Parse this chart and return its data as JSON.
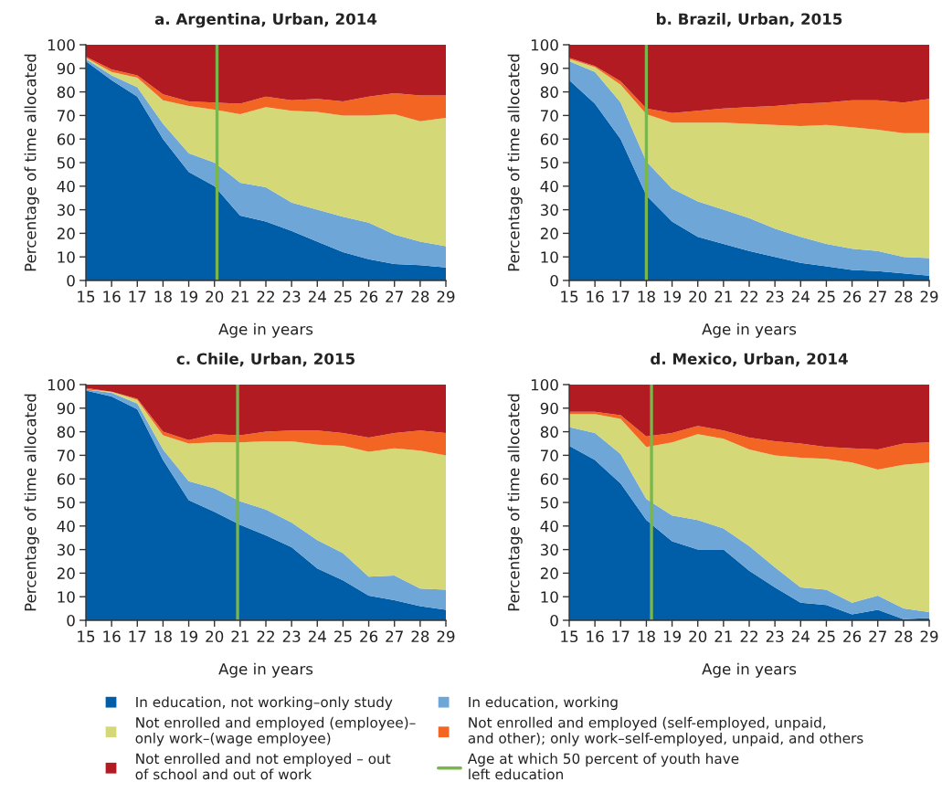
{
  "chart_data": [
    {
      "type": "area",
      "stacked": true,
      "title": "a. Argentina, Urban, 2014",
      "xlabel": "Age in years",
      "ylabel": "Percentage of time allocated",
      "x": [
        15,
        16,
        17,
        18,
        19,
        20,
        21,
        22,
        23,
        24,
        25,
        26,
        27,
        28,
        29
      ],
      "xlim": [
        15,
        29
      ],
      "xticks": [
        15,
        16,
        17,
        18,
        19,
        20,
        21,
        22,
        23,
        24,
        25,
        26,
        27,
        28,
        29
      ],
      "ylim": [
        0,
        100
      ],
      "yticks": [
        0,
        10,
        20,
        30,
        40,
        50,
        60,
        70,
        80,
        90,
        100
      ],
      "series": [
        {
          "color": "#005ea8",
          "values": [
            93,
            85,
            78,
            60,
            46,
            40,
            27.5,
            25,
            21,
            16.5,
            12,
            9,
            7,
            6.5,
            5.5
          ]
        },
        {
          "color": "#6ea6d8",
          "values": [
            1,
            2,
            4,
            6.5,
            8,
            10,
            14,
            14.5,
            12,
            13.5,
            15,
            15.5,
            12.5,
            10,
            9
          ]
        },
        {
          "color": "#d4d877",
          "values": [
            0.5,
            1.5,
            4,
            10,
            20,
            22.5,
            29,
            34,
            39,
            41.5,
            43,
            45.5,
            51,
            51,
            54.5
          ]
        },
        {
          "color": "#f26522",
          "values": [
            0.5,
            1,
            1,
            2.5,
            2,
            3,
            4.5,
            4.5,
            4.5,
            5.5,
            6,
            8,
            9,
            11,
            9.5
          ]
        },
        {
          "color": "#b31b23",
          "values": [
            5,
            10.5,
            13,
            21,
            24,
            24.5,
            25,
            22,
            23.5,
            23,
            24,
            22,
            20.5,
            21.5,
            21.5
          ]
        }
      ],
      "ref_lines": [
        {
          "axis": "x",
          "value": 20.1,
          "color": "#79b64b"
        }
      ]
    },
    {
      "type": "area",
      "stacked": true,
      "title": "b. Brazil, Urban, 2015",
      "xlabel": "Age in years",
      "ylabel": "Percentage of time allocated",
      "x": [
        15,
        16,
        17,
        18,
        19,
        20,
        21,
        22,
        23,
        24,
        25,
        26,
        27,
        28,
        29
      ],
      "xlim": [
        15,
        29
      ],
      "xticks": [
        15,
        16,
        17,
        18,
        19,
        20,
        21,
        22,
        23,
        24,
        25,
        26,
        27,
        28,
        29
      ],
      "ylim": [
        0,
        100
      ],
      "yticks": [
        0,
        10,
        20,
        30,
        40,
        50,
        60,
        70,
        80,
        90,
        100
      ],
      "series": [
        {
          "color": "#005ea8",
          "values": [
            85,
            75,
            60,
            36,
            25,
            18.5,
            15.5,
            12.5,
            10,
            7.5,
            6,
            4.5,
            4,
            3,
            2
          ]
        },
        {
          "color": "#6ea6d8",
          "values": [
            8,
            13.5,
            15.5,
            14.5,
            14,
            15,
            14.5,
            14,
            12,
            11,
            9.5,
            9,
            8.5,
            7,
            7.5
          ]
        },
        {
          "color": "#d4d877",
          "values": [
            1,
            2,
            7.5,
            20,
            28,
            33.5,
            37,
            40,
            44,
            47,
            50.5,
            51.5,
            51.5,
            52.5,
            53
          ]
        },
        {
          "color": "#f26522",
          "values": [
            0.5,
            0.5,
            1.5,
            2.5,
            4,
            5,
            6,
            7,
            8,
            9.5,
            9.5,
            11.5,
            12.5,
            13,
            14.5
          ]
        },
        {
          "color": "#b31b23",
          "values": [
            5.5,
            9,
            15.5,
            27,
            29,
            28,
            27,
            26.5,
            26,
            25,
            24.5,
            23.5,
            23.5,
            24.5,
            23
          ]
        }
      ],
      "ref_lines": [
        {
          "axis": "x",
          "value": 18,
          "color": "#79b64b"
        }
      ]
    },
    {
      "type": "area",
      "stacked": true,
      "title": "c. Chile, Urban, 2015",
      "xlabel": "Age in years",
      "ylabel": "Percentage of time allocated",
      "x": [
        15,
        16,
        17,
        18,
        19,
        20,
        21,
        22,
        23,
        24,
        25,
        26,
        27,
        28,
        29
      ],
      "xlim": [
        15,
        29
      ],
      "xticks": [
        15,
        16,
        17,
        18,
        19,
        20,
        21,
        22,
        23,
        24,
        25,
        26,
        27,
        28,
        29
      ],
      "ylim": [
        0,
        100
      ],
      "yticks": [
        0,
        10,
        20,
        30,
        40,
        50,
        60,
        70,
        80,
        90,
        100
      ],
      "legend": "bottom",
      "series": [
        {
          "name": "In education, not working–only study",
          "color": "#005ea8",
          "values": [
            97.5,
            95,
            89.5,
            68,
            51,
            46,
            40.5,
            36,
            31,
            22,
            17,
            10.5,
            8.5,
            6,
            4.5
          ]
        },
        {
          "name": "In education, working",
          "color": "#6ea6d8",
          "values": [
            0.5,
            1.5,
            2.5,
            4.5,
            8,
            10,
            10,
            11,
            10.5,
            12,
            11.5,
            8,
            10.5,
            7.5,
            8.5
          ]
        },
        {
          "name": "Not enrolled and employed (employee)–\nonly work–(wage employee)",
          "color": "#d4d877",
          "values": [
            0,
            0.5,
            1.5,
            6,
            16,
            19.5,
            25,
            29,
            34.5,
            40.5,
            45.5,
            53,
            54,
            58.5,
            57
          ]
        },
        {
          "name": "Not enrolled and employed (self-employed, unpaid,\nand other); only work–self-employed, unpaid, and others",
          "color": "#f26522",
          "values": [
            0.5,
            0,
            0.5,
            1.5,
            1.5,
            3.5,
            3,
            4,
            4.5,
            6,
            5.5,
            6,
            6.5,
            8.5,
            9.5
          ]
        },
        {
          "name": "Not enrolled and not employed – out\nof school and out of work",
          "color": "#b31b23",
          "values": [
            1.5,
            3,
            6,
            20,
            23.5,
            21,
            21.5,
            20,
            19.5,
            19.5,
            20.5,
            22.5,
            20.5,
            19.5,
            20.5
          ]
        }
      ],
      "ref_lines": [
        {
          "axis": "x",
          "value": 20.9,
          "color": "#79b64b",
          "label": "Age at which 50 percent of youth have\nleft education"
        }
      ]
    },
    {
      "type": "area",
      "stacked": true,
      "title": "d. Mexico, Urban, 2014",
      "xlabel": "Age in years",
      "ylabel": "Percentage of time allocated",
      "x": [
        15,
        16,
        17,
        18,
        19,
        20,
        21,
        22,
        23,
        24,
        25,
        26,
        27,
        28,
        29
      ],
      "xlim": [
        15,
        29
      ],
      "xticks": [
        15,
        16,
        17,
        18,
        19,
        20,
        21,
        22,
        23,
        24,
        25,
        26,
        27,
        28,
        29
      ],
      "ylim": [
        0,
        100
      ],
      "yticks": [
        0,
        10,
        20,
        30,
        40,
        50,
        60,
        70,
        80,
        90,
        100
      ],
      "series": [
        {
          "color": "#005ea8",
          "values": [
            74,
            68,
            58,
            42.5,
            33.5,
            30,
            30,
            21,
            14,
            7.5,
            6.5,
            2.5,
            4.5,
            0.5,
            1
          ]
        },
        {
          "color": "#6ea6d8",
          "values": [
            8,
            11.5,
            12.5,
            9,
            11,
            12.5,
            9,
            10.5,
            8.5,
            6.5,
            6.5,
            5,
            6,
            4.5,
            2.5
          ]
        },
        {
          "color": "#d4d877",
          "values": [
            5.5,
            8,
            15,
            22,
            31,
            36.5,
            38,
            41,
            47.5,
            55,
            55.5,
            59.5,
            53.5,
            61,
            63.5
          ]
        },
        {
          "color": "#f26522",
          "values": [
            1,
            1,
            1.5,
            4.5,
            4,
            3.5,
            3.5,
            5,
            6,
            6,
            5,
            6,
            8.5,
            9,
            8.5
          ]
        },
        {
          "color": "#b31b23",
          "values": [
            11.5,
            11.5,
            13,
            22,
            20.5,
            17.5,
            19.5,
            22.5,
            24,
            25,
            26.5,
            27,
            27.5,
            25,
            24.5
          ]
        }
      ],
      "ref_lines": [
        {
          "axis": "x",
          "value": 18.2,
          "color": "#79b64b"
        }
      ]
    }
  ]
}
